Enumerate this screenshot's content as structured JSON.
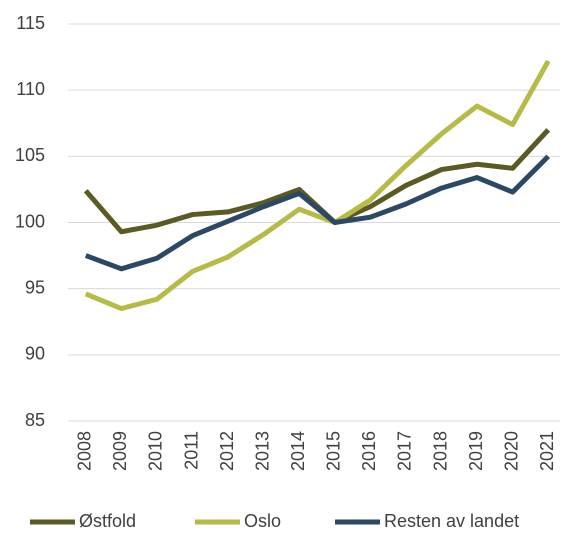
{
  "chart_data": {
    "type": "line",
    "categories": [
      "2008",
      "2009",
      "2010",
      "2011",
      "2012",
      "2013",
      "2014",
      "2015",
      "2016",
      "2017",
      "2018",
      "2019",
      "2020",
      "2021"
    ],
    "series": [
      {
        "name": "Østfold",
        "color": "#5b5a24",
        "values": [
          102.4,
          99.3,
          99.8,
          100.6,
          100.8,
          101.5,
          102.5,
          100,
          101.2,
          102.8,
          104,
          104.4,
          104.1,
          107
        ]
      },
      {
        "name": "Oslo",
        "color": "#b6ba46",
        "values": [
          94.6,
          93.5,
          94.2,
          96.3,
          97.4,
          99.1,
          101,
          100,
          101.7,
          104.3,
          106.7,
          108.8,
          107.4,
          112.2
        ]
      },
      {
        "name": "Resten av landet",
        "color": "#2b4864",
        "values": [
          97.5,
          96.5,
          97.3,
          99,
          100.1,
          101.2,
          102.2,
          100,
          100.4,
          101.4,
          102.6,
          103.4,
          102.3,
          105
        ]
      }
    ],
    "ylim": [
      85,
      115
    ],
    "yticks": [
      85,
      90,
      95,
      100,
      105,
      110,
      115
    ],
    "grid": true,
    "legend": "bottom"
  }
}
